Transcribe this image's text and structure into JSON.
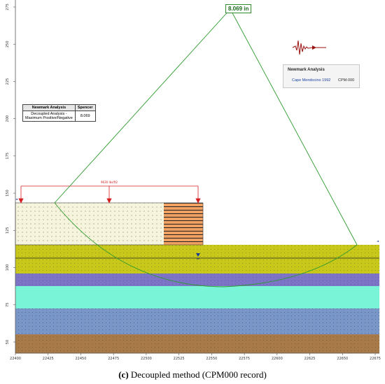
{
  "figure": {
    "caption_label": "(c)",
    "caption_text": " Decoupled method (CPM000 record)"
  },
  "slip_surface": {
    "displacement_label": "8.069 in",
    "color": "#2e9b2e"
  },
  "results_table": {
    "header_left": "Newmark Analysis",
    "header_right": "Spencer",
    "row_label_line1": "Decoupled Analysis -",
    "row_label_line2": "Maximum Positive/Negative",
    "row_value": "8.069"
  },
  "newmark_panel": {
    "title": "Newmark Analysis",
    "record_name": "Cape Mendocino 1992",
    "record_id": "CPM-000"
  },
  "load": {
    "label": "9630 lbs/ft2",
    "color": "#d42020"
  },
  "axes": {
    "x_ticks": [
      "22400",
      "22425",
      "22450",
      "22475",
      "22500",
      "22525",
      "22550",
      "22575",
      "22600",
      "22625",
      "22650",
      "22675"
    ],
    "y_ticks": [
      "50",
      "75",
      "100",
      "125",
      "150",
      "175",
      "200",
      "225",
      "250",
      "275"
    ]
  },
  "layers": {
    "embankment_fill": "#f6f4dc",
    "block_fill": "#f0a060",
    "yellow_layer": "#c8c81a",
    "purple_layer": "#7d74c8",
    "aqua_layer": "#7af4d6",
    "blue_layer": "#7896c8",
    "brown_layer": "#a87a48"
  }
}
